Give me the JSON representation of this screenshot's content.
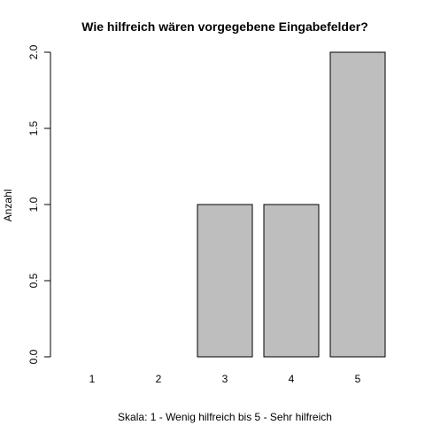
{
  "chart_data": {
    "type": "bar",
    "title": "Wie hilfreich wären vorgegebene Eingabefelder?",
    "xlabel": "Skala: 1 - Wenig hilfreich bis 5 - Sehr hilfreich",
    "ylabel": "Anzahl",
    "categories": [
      "1",
      "2",
      "3",
      "4",
      "5"
    ],
    "values": [
      0,
      0,
      1,
      1,
      2
    ],
    "ylim": [
      0,
      2
    ],
    "yticks": [
      "0.0",
      "0.5",
      "1.0",
      "1.5",
      "2.0"
    ],
    "bar_color": "#bebebe",
    "grid": false
  }
}
